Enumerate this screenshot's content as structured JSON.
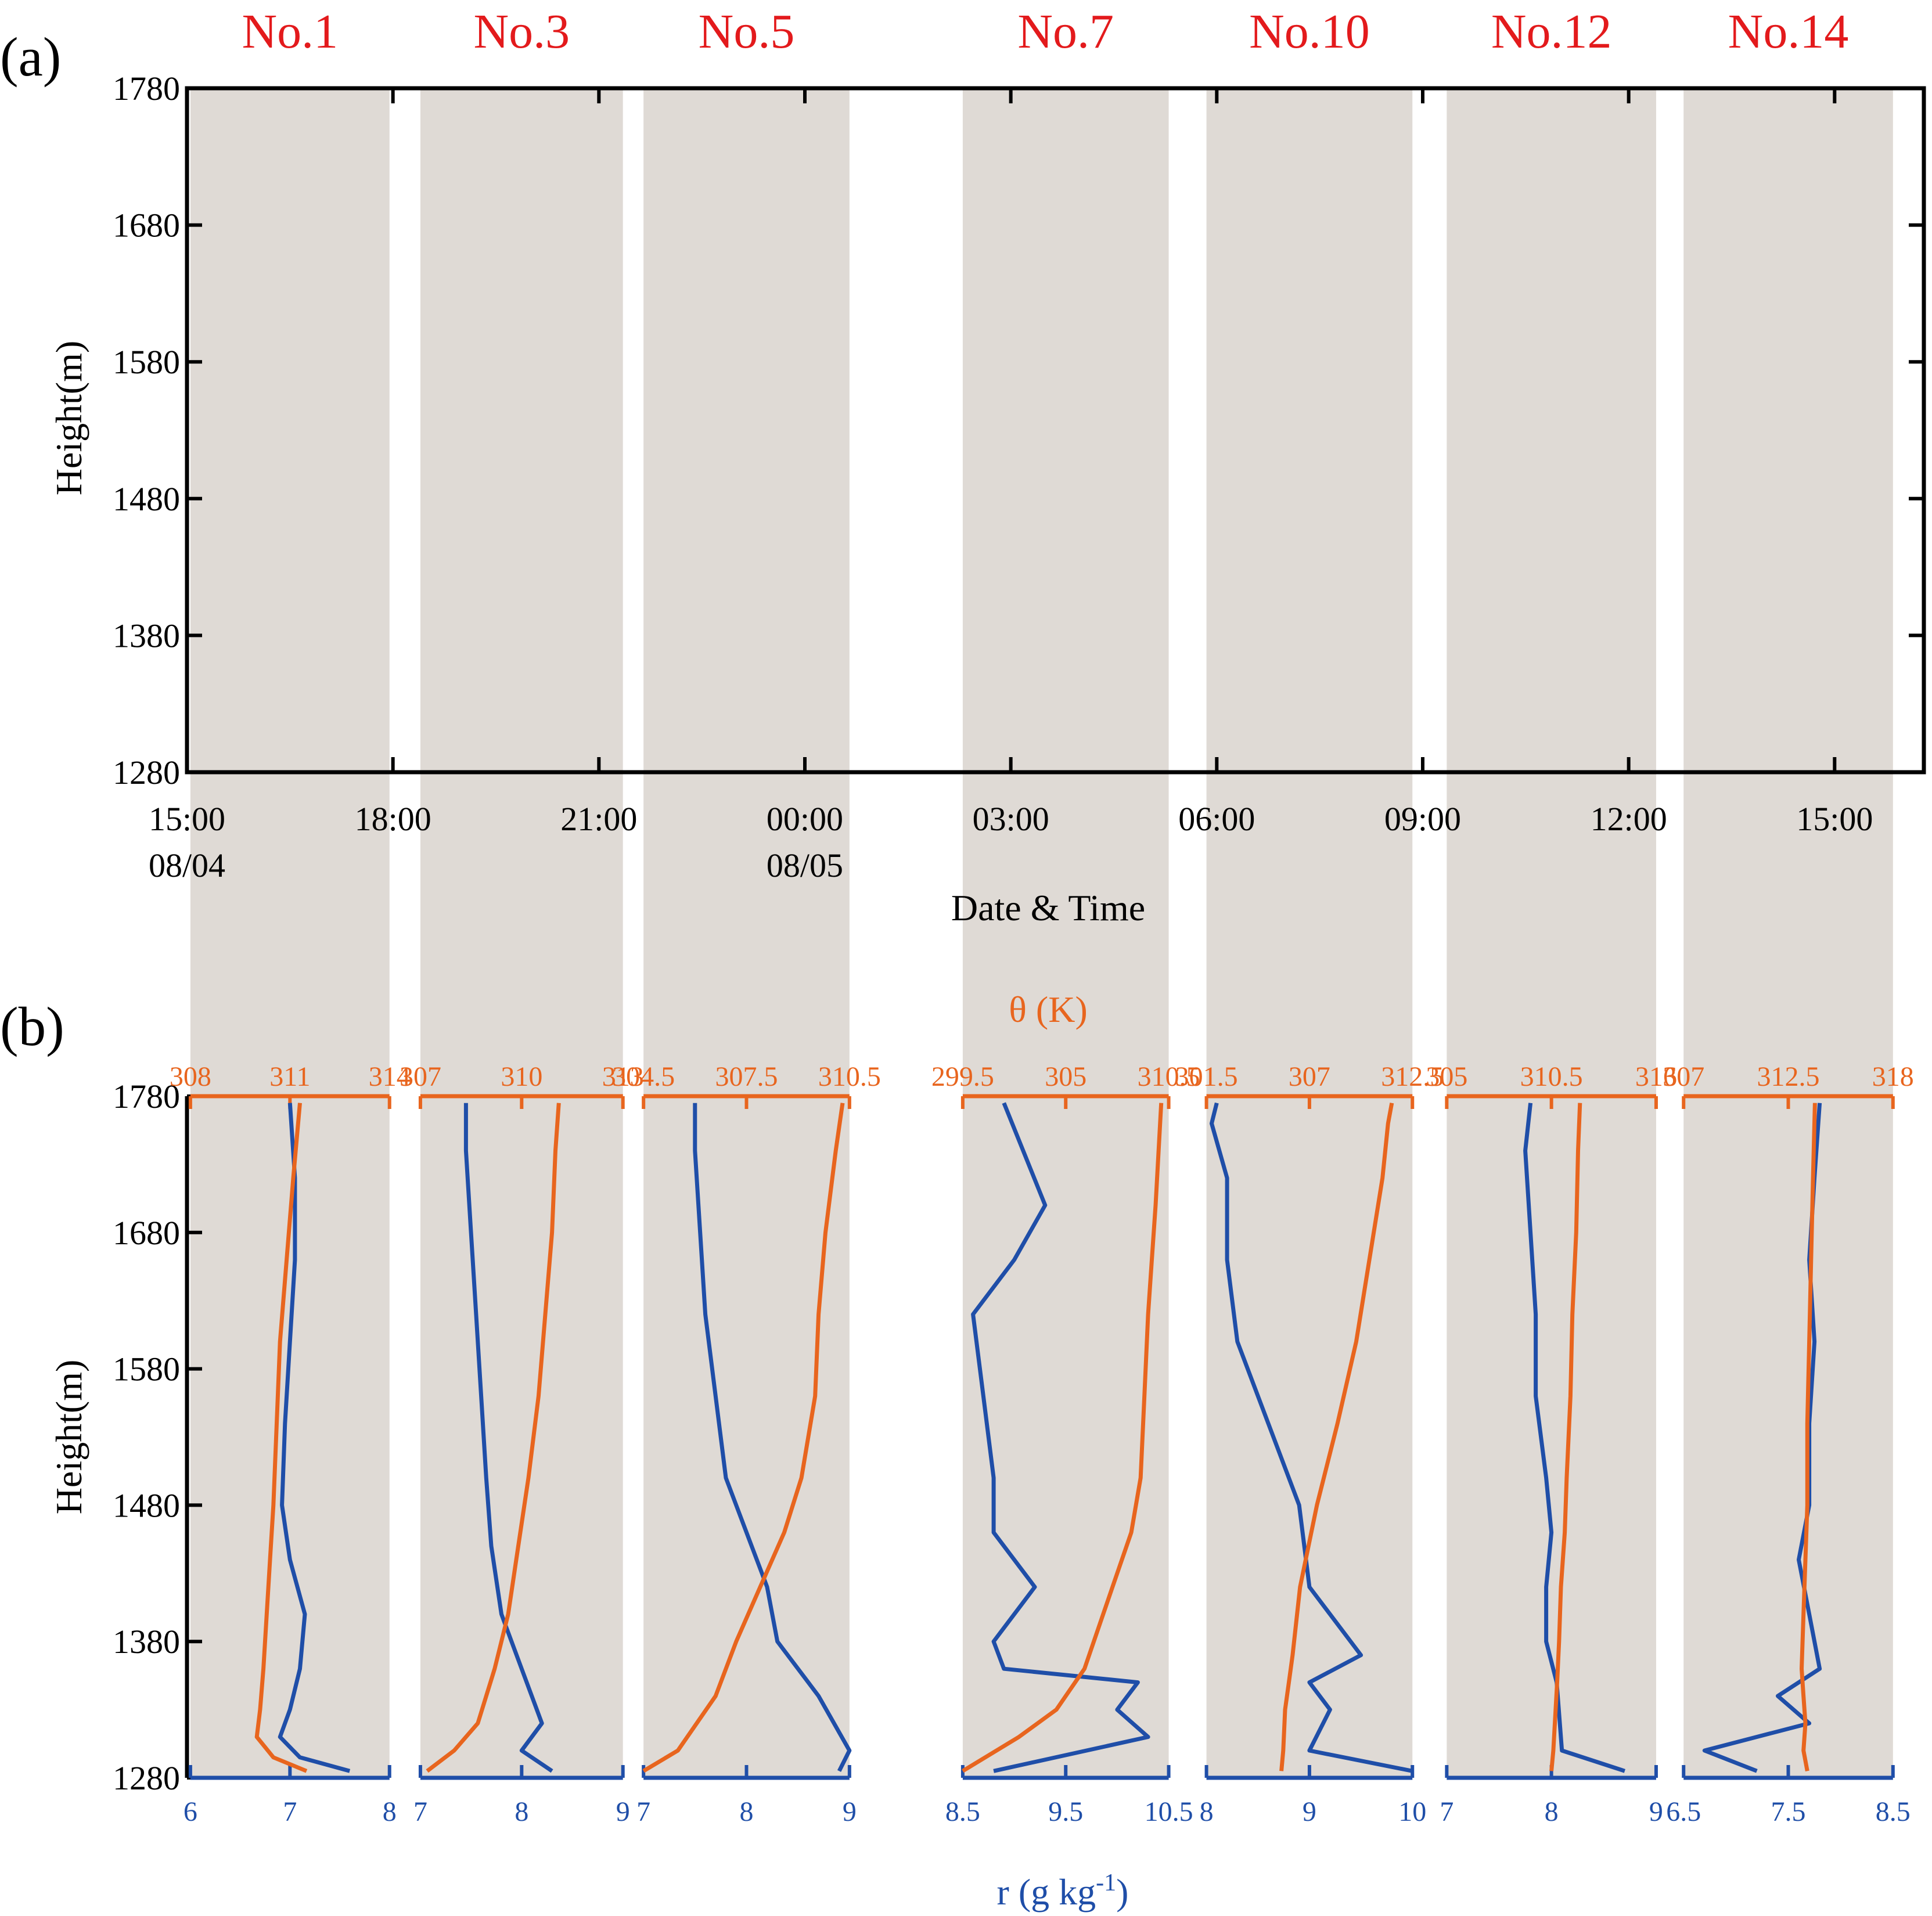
{
  "chart_data": [
    {
      "panel_label": "(a)",
      "type": "area",
      "ylabel": "Height(m)",
      "xlabel": "Date & Time",
      "ylim": [
        1280,
        1780
      ],
      "yticks": [
        "1280",
        "1380",
        "1480",
        "1580",
        "1680",
        "1780"
      ],
      "xticks": [
        {
          "label": "15:00",
          "sublabel": "08/04",
          "hour": 0
        },
        {
          "label": "18:00",
          "sublabel": "",
          "hour": 3
        },
        {
          "label": "21:00",
          "sublabel": "",
          "hour": 6
        },
        {
          "label": "00:00",
          "sublabel": "08/05",
          "hour": 9
        },
        {
          "label": "03:00",
          "sublabel": "",
          "hour": 12
        },
        {
          "label": "06:00",
          "sublabel": "",
          "hour": 15
        },
        {
          "label": "09:00",
          "sublabel": "",
          "hour": 18
        },
        {
          "label": "12:00",
          "sublabel": "",
          "hour": 21
        },
        {
          "label": "15:00",
          "sublabel": "",
          "hour": 24
        }
      ],
      "xlim_hours": [
        0,
        25.3
      ],
      "flights": [
        {
          "name": "No.1",
          "start_hour": 0.05,
          "end_hour": 2.95
        },
        {
          "name": "No.3",
          "start_hour": 3.4,
          "end_hour": 6.35
        },
        {
          "name": "No.5",
          "start_hour": 6.65,
          "end_hour": 9.65
        },
        {
          "name": "No.7",
          "start_hour": 11.3,
          "end_hour": 14.3
        },
        {
          "name": "No.10",
          "start_hour": 14.85,
          "end_hour": 17.85
        },
        {
          "name": "No.12",
          "start_hour": 18.35,
          "end_hour": 21.4
        },
        {
          "name": "No.14",
          "start_hour": 21.8,
          "end_hour": 24.85
        }
      ]
    },
    {
      "panel_label": "(b)",
      "type": "line",
      "ylabel": "Height(m)",
      "top_axis_label": "θ (K)",
      "bottom_axis_label": "r (g kg⁻¹)",
      "ylim": [
        1280,
        1780
      ],
      "yticks": [
        "1280",
        "1380",
        "1480",
        "1580",
        "1680",
        "1780"
      ],
      "colors": {
        "theta": "#E8651E",
        "r": "#1F4EA8"
      },
      "profiles": [
        {
          "name": "No.1",
          "theta_ticks": [
            "308",
            "311",
            "314"
          ],
          "theta_lim": [
            308,
            314
          ],
          "r_ticks": [
            "6",
            "7",
            "8"
          ],
          "r_lim": [
            6,
            8
          ],
          "height": [
            1285,
            1295,
            1310,
            1330,
            1360,
            1400,
            1440,
            1480,
            1540,
            1600,
            1660,
            1720,
            1775
          ],
          "r": [
            7.6,
            7.1,
            6.9,
            7.0,
            7.1,
            7.15,
            7.0,
            6.92,
            6.95,
            7.0,
            7.05,
            7.05,
            7.0
          ],
          "theta": [
            311.5,
            310.5,
            310.0,
            310.1,
            310.2,
            310.3,
            310.4,
            310.5,
            310.6,
            310.7,
            310.9,
            311.1,
            311.3
          ]
        },
        {
          "name": "No.3",
          "theta_ticks": [
            "307",
            "310",
            "313"
          ],
          "theta_lim": [
            307,
            313
          ],
          "r_ticks": [
            "7",
            "8",
            "9"
          ],
          "r_lim": [
            7,
            9
          ],
          "height": [
            1285,
            1300,
            1320,
            1360,
            1400,
            1450,
            1500,
            1560,
            1620,
            1680,
            1740,
            1775
          ],
          "r": [
            8.3,
            8.0,
            8.2,
            8.0,
            7.8,
            7.7,
            7.65,
            7.6,
            7.55,
            7.5,
            7.45,
            7.45
          ],
          "theta": [
            307.2,
            308.0,
            308.7,
            309.2,
            309.6,
            309.9,
            310.2,
            310.5,
            310.7,
            310.9,
            311.0,
            311.1
          ]
        },
        {
          "name": "No.5",
          "theta_ticks": [
            "304.5",
            "307.5",
            "310.5"
          ],
          "theta_lim": [
            304.5,
            310.5
          ],
          "r_ticks": [
            "7",
            "8",
            "9"
          ],
          "r_lim": [
            7,
            9
          ],
          "height": [
            1285,
            1300,
            1340,
            1380,
            1420,
            1460,
            1500,
            1560,
            1620,
            1680,
            1740,
            1775
          ],
          "r": [
            8.9,
            9.0,
            8.7,
            8.3,
            8.2,
            8.0,
            7.8,
            7.7,
            7.6,
            7.55,
            7.5,
            7.5
          ],
          "theta": [
            304.5,
            305.5,
            306.6,
            307.2,
            307.9,
            308.6,
            309.1,
            309.5,
            309.6,
            309.8,
            310.1,
            310.3
          ]
        },
        {
          "name": "No.7",
          "theta_ticks": [
            "299.5",
            "305",
            "310.5"
          ],
          "theta_lim": [
            299.5,
            310.5
          ],
          "r_ticks": [
            "8.5",
            "9.5",
            "10.5"
          ],
          "r_lim": [
            8.5,
            10.5
          ],
          "height": [
            1285,
            1310,
            1330,
            1350,
            1360,
            1380,
            1420,
            1460,
            1500,
            1560,
            1620,
            1660,
            1700,
            1775
          ],
          "r": [
            8.8,
            10.3,
            10.0,
            10.2,
            8.9,
            8.8,
            9.2,
            8.8,
            8.8,
            8.7,
            8.6,
            9.0,
            9.3,
            8.9
          ],
          "theta": [
            299.5,
            302.5,
            304.5,
            305.5,
            306.0,
            306.5,
            307.5,
            308.5,
            309.0,
            309.2,
            309.4,
            309.6,
            309.8,
            310.1
          ]
        },
        {
          "name": "No.10",
          "theta_ticks": [
            "301.5",
            "307",
            "312.5"
          ],
          "theta_lim": [
            301.5,
            312.5
          ],
          "r_ticks": [
            "8",
            "9",
            "10"
          ],
          "r_lim": [
            8,
            10
          ],
          "height": [
            1285,
            1300,
            1330,
            1350,
            1370,
            1420,
            1480,
            1540,
            1600,
            1660,
            1720,
            1760,
            1775
          ],
          "r": [
            10.0,
            9.0,
            9.2,
            9.0,
            9.5,
            9.0,
            8.9,
            8.6,
            8.3,
            8.2,
            8.2,
            8.05,
            8.1
          ],
          "theta": [
            305.5,
            305.6,
            305.7,
            305.9,
            306.1,
            306.5,
            307.4,
            308.5,
            309.5,
            310.2,
            310.9,
            311.2,
            311.4
          ]
        },
        {
          "name": "No.12",
          "theta_ticks": [
            "305",
            "310.5",
            "316"
          ],
          "theta_lim": [
            305,
            316
          ],
          "r_ticks": [
            "7",
            "8",
            "9"
          ],
          "r_lim": [
            7,
            9
          ],
          "height": [
            1285,
            1300,
            1350,
            1380,
            1420,
            1460,
            1500,
            1560,
            1620,
            1680,
            1740,
            1775
          ],
          "r": [
            8.7,
            8.1,
            8.05,
            7.95,
            7.95,
            8.0,
            7.95,
            7.85,
            7.85,
            7.8,
            7.75,
            7.8
          ],
          "theta": [
            310.5,
            310.6,
            310.8,
            310.9,
            311.0,
            311.2,
            311.3,
            311.5,
            311.6,
            311.8,
            311.9,
            312.0
          ]
        },
        {
          "name": "No.14",
          "theta_ticks": [
            "307",
            "312.5",
            "318"
          ],
          "theta_lim": [
            307,
            318
          ],
          "r_ticks": [
            "6.5",
            "7.5",
            "8.5"
          ],
          "r_lim": [
            6.5,
            8.5
          ],
          "height": [
            1285,
            1300,
            1320,
            1340,
            1360,
            1400,
            1440,
            1480,
            1540,
            1600,
            1660,
            1720,
            1775
          ],
          "r": [
            7.2,
            6.7,
            7.7,
            7.4,
            7.8,
            7.7,
            7.6,
            7.7,
            7.7,
            7.75,
            7.7,
            7.75,
            7.8
          ],
          "theta": [
            313.5,
            313.3,
            313.4,
            313.3,
            313.2,
            313.3,
            313.4,
            313.5,
            313.5,
            313.6,
            313.7,
            313.8,
            313.9
          ]
        }
      ]
    }
  ]
}
